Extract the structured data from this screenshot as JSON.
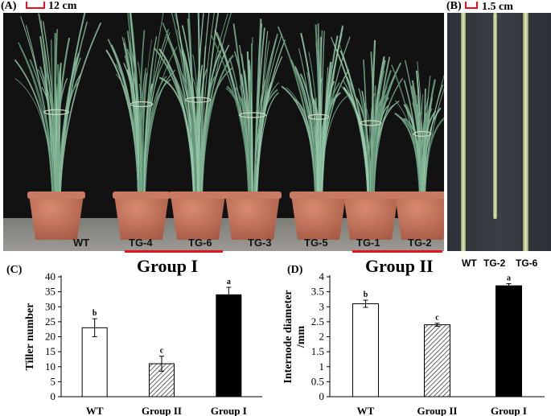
{
  "panel_a": {
    "label": "(A)",
    "scale_text": "12 cm",
    "plants": [
      "WT",
      "TG-4",
      "TG-6",
      "TG-3",
      "TG-5",
      "TG-1",
      "TG-2"
    ]
  },
  "panel_b": {
    "label": "(B)",
    "scale_text": "1.5 cm",
    "stems": [
      "WT",
      "TG-2",
      "TG-6"
    ]
  },
  "panel_c": {
    "label": "(C)"
  },
  "panel_d": {
    "label": "(D)"
  },
  "chart_data": [
    {
      "type": "bar",
      "title": "Group I",
      "ylabel": "Tiller number",
      "categories": [
        "WT",
        "Group II",
        "Group I"
      ],
      "values": [
        23,
        11,
        34
      ],
      "errors": [
        3,
        2.5,
        2.5
      ],
      "letters": [
        "b",
        "c",
        "a"
      ],
      "fills": [
        "white",
        "hatch",
        "black"
      ],
      "ylim": [
        0,
        40
      ],
      "yticks": [
        0,
        5,
        10,
        15,
        20,
        25,
        30,
        35,
        40
      ]
    },
    {
      "type": "bar",
      "title": "Group II",
      "ylabel": "Internode diameter /mm",
      "categories": [
        "WT",
        "Group II",
        "Group I"
      ],
      "values": [
        3.1,
        2.4,
        3.7
      ],
      "errors": [
        0.12,
        0.05,
        0.07
      ],
      "letters": [
        "b",
        "c",
        "a"
      ],
      "fills": [
        "white",
        "hatch",
        "black"
      ],
      "ylim": [
        0,
        4
      ],
      "yticks": [
        0,
        0.5,
        1,
        1.5,
        2,
        2.5,
        3,
        3.5,
        4
      ]
    }
  ]
}
